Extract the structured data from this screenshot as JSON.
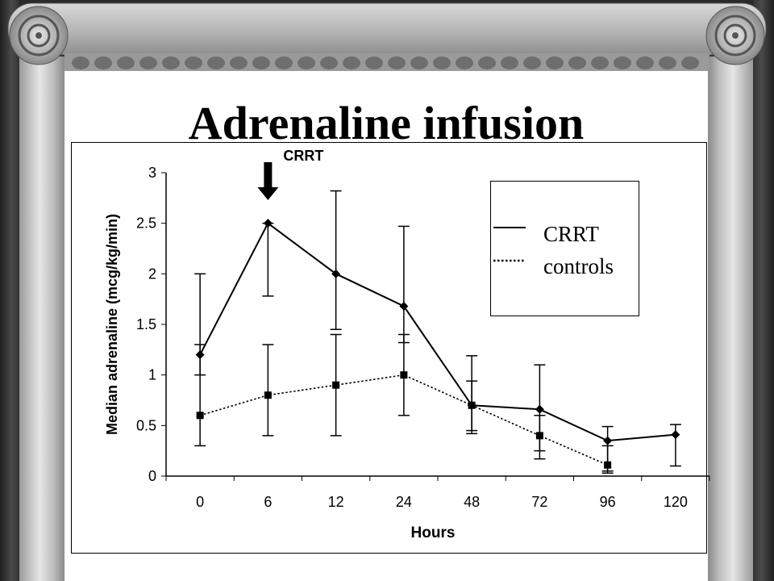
{
  "slide": {
    "title": "Adrenaline infusion"
  },
  "chart_data": {
    "type": "line",
    "xlabel": "Hours",
    "ylabel": "Median adrenaline (mcg/kg/min)",
    "categories": [
      "0",
      "6",
      "12",
      "24",
      "48",
      "72",
      "96",
      "120"
    ],
    "ylim": [
      0,
      3
    ],
    "yticks": [
      "0",
      "0.5",
      "1",
      "1.5",
      "2",
      "2.5",
      "3"
    ],
    "ytick_values": [
      0,
      0.5,
      1,
      1.5,
      2,
      2.5,
      3
    ],
    "annotation": {
      "text": "CRRT",
      "at_category": "6"
    },
    "legend": {
      "placement": "top-right",
      "entries": [
        "CRRT",
        "controls"
      ]
    },
    "series": [
      {
        "name": "CRRT",
        "line": "solid",
        "marker": "diamond",
        "color": "#000000",
        "values": [
          1.2,
          2.5,
          2.0,
          1.68,
          0.7,
          0.66,
          0.35,
          0.41
        ],
        "err_low": [
          1.0,
          1.78,
          1.45,
          1.32,
          0.45,
          0.25,
          0.05,
          0.1
        ],
        "err_high": [
          2.0,
          2.5,
          2.82,
          2.47,
          1.19,
          1.1,
          0.49,
          0.51
        ]
      },
      {
        "name": "controls",
        "line": "dotted",
        "marker": "square",
        "color": "#000000",
        "values": [
          0.6,
          0.8,
          0.9,
          1.0,
          0.7,
          0.4,
          0.11,
          null
        ],
        "err_low": [
          0.3,
          0.4,
          0.4,
          0.6,
          0.42,
          0.17,
          0.03,
          null
        ],
        "err_high": [
          1.3,
          1.3,
          1.4,
          1.4,
          0.94,
          0.6,
          0.3,
          null
        ]
      }
    ]
  }
}
